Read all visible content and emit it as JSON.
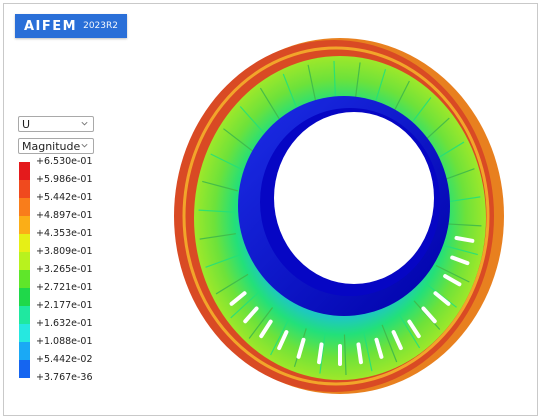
{
  "brand": {
    "name": "AIFEM",
    "version": "2023R2"
  },
  "controls": {
    "field": {
      "value": "U",
      "icon": "chevron-down-icon"
    },
    "component": {
      "value": "Magnitude",
      "icon": "chevron-down-icon"
    }
  },
  "legend": {
    "labels": [
      "+6.530e-01",
      "+5.986e-01",
      "+5.442e-01",
      "+4.897e-01",
      "+4.353e-01",
      "+3.809e-01",
      "+3.265e-01",
      "+2.721e-01",
      "+2.177e-01",
      "+1.632e-01",
      "+1.088e-01",
      "+5.442e-02",
      "+3.767e-36"
    ],
    "colors": [
      "#e41a1c",
      "#f04a1e",
      "#f97d1b",
      "#fbae17",
      "#e6ef16",
      "#b8f21e",
      "#5fe62a",
      "#1fd84a",
      "#1fe8a0",
      "#26e8e0",
      "#1aa9f5",
      "#1565f0",
      "#0a00d8"
    ]
  },
  "model": {
    "blade_count": 34,
    "colors": {
      "outer_shroud": "#d94a24",
      "outer_shroud_band": "#e8801f",
      "blades_high": "#6de23a",
      "blades_low": "#22e07a",
      "hub": "#0a10d6",
      "hub_dark": "#0000a8",
      "slot": "#ffffff"
    }
  }
}
